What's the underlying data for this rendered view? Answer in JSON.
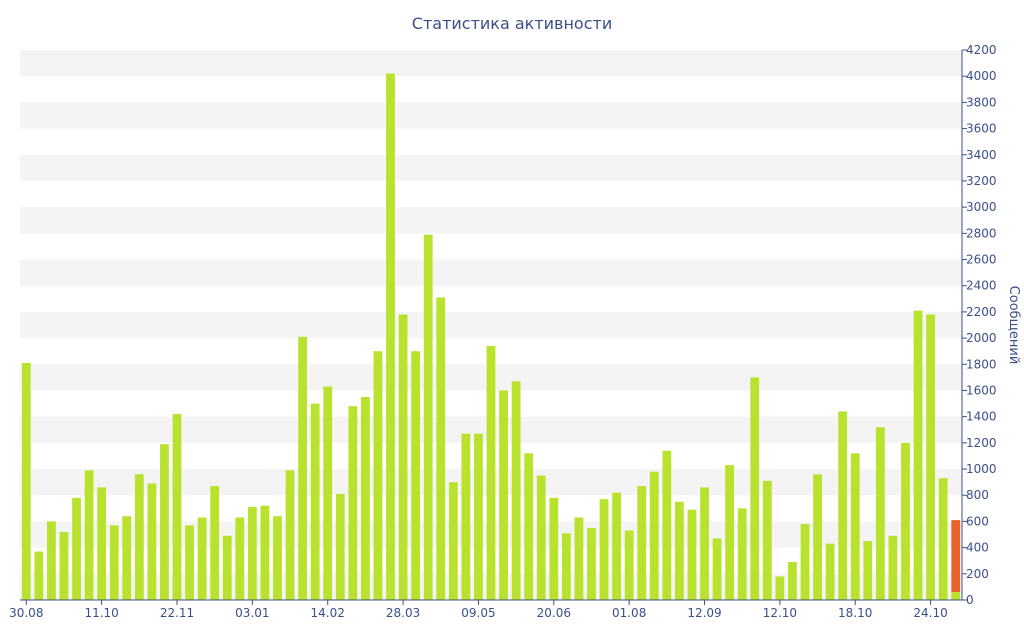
{
  "chart_data": {
    "type": "bar",
    "title": "Статистика активности",
    "ylabel": "Сообщений",
    "xlabel": "",
    "ylim": [
      0,
      4200
    ],
    "yticks": [
      0,
      200,
      400,
      600,
      800,
      1000,
      1200,
      1400,
      1600,
      1800,
      2000,
      2200,
      2400,
      2600,
      2800,
      3000,
      3200,
      3400,
      3600,
      3800,
      4000,
      4200
    ],
    "xtick_labels": [
      "30.08",
      "11.10",
      "22.11",
      "03.01",
      "14.02",
      "28.03",
      "09.05",
      "20.06",
      "01.08",
      "12.09",
      "12.10",
      "18.10",
      "24.10"
    ],
    "xtick_bar_index": [
      0,
      6,
      12,
      18,
      24,
      30,
      36,
      42,
      48,
      54,
      60,
      66,
      72
    ],
    "grid": "horizontal-bands",
    "legend": "none",
    "colors": {
      "bar": "#b8e22e",
      "last_bar": "#e8632b",
      "band": "#f4f4f4",
      "axis": "#3d4f8a"
    },
    "values": [
      1810,
      370,
      600,
      520,
      780,
      990,
      860,
      570,
      640,
      960,
      890,
      1190,
      1420,
      570,
      630,
      870,
      490,
      630,
      710,
      720,
      640,
      990,
      2010,
      1500,
      1630,
      810,
      1480,
      1550,
      1900,
      4020,
      2180,
      1900,
      2790,
      2310,
      900,
      1270,
      1270,
      1940,
      1600,
      1670,
      1120,
      950,
      780,
      510,
      630,
      550,
      770,
      820,
      530,
      870,
      980,
      1140,
      750,
      690,
      860,
      470,
      1030,
      700,
      1700,
      910,
      180,
      290,
      580,
      960,
      430,
      1440,
      1120,
      450,
      1320,
      490,
      1200,
      2210,
      2180,
      930,
      610
    ],
    "last_bar_highlight": {
      "index": 74,
      "lower_segment_value": 60,
      "lower_segment_color": "#b8e22e"
    }
  }
}
